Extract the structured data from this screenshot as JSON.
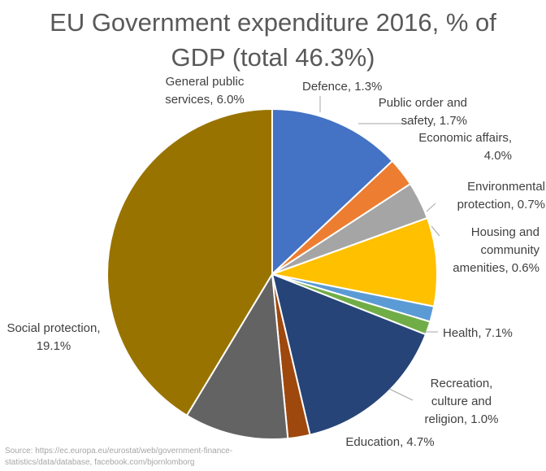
{
  "chart_data": {
    "type": "pie",
    "title_lines": [
      "EU Government expenditure 2016, % of",
      "GDP (total 46.3%)"
    ],
    "total": 46.3,
    "start_angle_deg": 0,
    "direction": "clockwise",
    "slices": [
      {
        "name": "General public services",
        "value": 6.0,
        "color": "#4472C4",
        "label_lines": [
          "General public",
          "services, 6.0%"
        ]
      },
      {
        "name": "Defence",
        "value": 1.3,
        "color": "#ED7D31",
        "label_lines": [
          "Defence, 1.3%"
        ]
      },
      {
        "name": "Public order and safety",
        "value": 1.7,
        "color": "#A5A5A5",
        "label_lines": [
          "Public order and",
          "safety, 1.7%"
        ]
      },
      {
        "name": "Economic affairs",
        "value": 4.0,
        "color": "#FFC000",
        "label_lines": [
          "Economic affairs,",
          "4.0%"
        ]
      },
      {
        "name": "Environmental protection",
        "value": 0.7,
        "color": "#5B9BD5",
        "label_lines": [
          "Environmental",
          "protection, 0.7%"
        ]
      },
      {
        "name": "Housing and community amenities",
        "value": 0.6,
        "color": "#70AD47",
        "label_lines": [
          "Housing and",
          "community",
          "amenities, 0.6%"
        ]
      },
      {
        "name": "Health",
        "value": 7.1,
        "color": "#264478",
        "label_lines": [
          "Health, 7.1%"
        ]
      },
      {
        "name": "Recreation, culture and religion",
        "value": 1.0,
        "color": "#9E480E",
        "label_lines": [
          "Recreation,",
          "culture and",
          "religion, 1.0%"
        ]
      },
      {
        "name": "Education",
        "value": 4.7,
        "color": "#636363",
        "label_lines": [
          "Education, 4.7%"
        ]
      },
      {
        "name": "Social protection",
        "value": 19.1,
        "color": "#997300",
        "label_lines": [
          "Social protection,",
          "19.1%"
        ]
      }
    ],
    "source_lines": [
      "Source: https://ec.europa.eu/eurostat/web/government-finance-",
      "statistics/data/database, facebook.com/bjornlomborg"
    ]
  }
}
